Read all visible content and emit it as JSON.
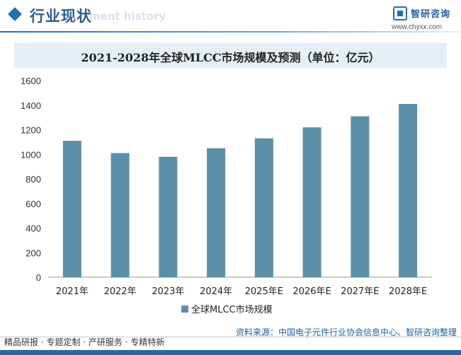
{
  "header": {
    "section_title": "行业现状",
    "section_watermark": "ment history",
    "brand_name": "智研咨询",
    "brand_url": "www.chyxx.com"
  },
  "chart_data": {
    "type": "bar",
    "title": "2021-2028年全球MLCC市场规模及预测（单位：亿元）",
    "categories": [
      "2021年",
      "2022年",
      "2023年",
      "2024年",
      "2025年E",
      "2026年E",
      "2027年E",
      "2028年E"
    ],
    "series": [
      {
        "name": "全球MLCC市场规模",
        "values": [
          1110,
          1010,
          980,
          1050,
          1130,
          1220,
          1310,
          1410
        ]
      }
    ],
    "ylim": [
      0,
      1600
    ],
    "yticks": [
      0,
      200,
      400,
      600,
      800,
      1000,
      1200,
      1400,
      1600
    ],
    "xlabel": "",
    "ylabel": "",
    "legend": "bottom-center",
    "grid": false,
    "bar_color": "#5b8fa8"
  },
  "footer": {
    "tagline": "精品研报 · 专题定制 · 产研服务 · 专精特新",
    "source": "资料来源：中国电子元件行业协会信息中心、智研咨询整理"
  }
}
